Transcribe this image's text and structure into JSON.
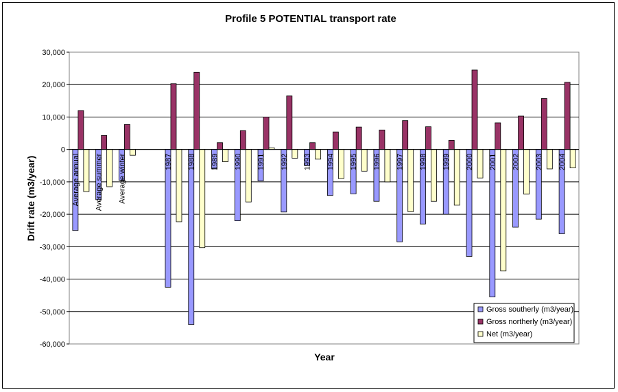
{
  "chart_data": {
    "type": "bar",
    "title": "Profile 5 POTENTIAL transport rate",
    "xlabel": "Year",
    "ylabel": "Drift rate (m3/year)",
    "ylim": [
      -60000,
      30000
    ],
    "yticks": [
      30000,
      20000,
      10000,
      0,
      -10000,
      -20000,
      -30000,
      -40000,
      -50000,
      -60000
    ],
    "ytick_labels": [
      "30,000",
      "20,000",
      "10,000",
      "0",
      "-10,000",
      "-20,000",
      "-30,000",
      "-40,000",
      "-50,000",
      "-60,000"
    ],
    "grid": true,
    "legend_position": "bottom-right",
    "categories": [
      "Average annual",
      "Average summer",
      "Average winter",
      "",
      "1987",
      "1988",
      "1989",
      "1990",
      "1991",
      "1992",
      "1993",
      "1994",
      "1995",
      "1996",
      "1997",
      "1998",
      "1999",
      "2000",
      "2001",
      "2002",
      "2003",
      "2004"
    ],
    "category_labels": [
      "Average annual",
      "Average summer",
      "Average winter",
      "",
      "1987",
      "1988",
      "1989",
      "1990",
      "1991",
      "1992",
      "1993",
      "1994",
      "1995",
      "1996",
      "1997",
      "1998",
      "1999",
      "2000",
      "2001",
      "2002",
      "2003",
      "2004"
    ],
    "series": [
      {
        "name": "Gross southerly (m3/year)",
        "color": "#9999ff",
        "values": [
          -25000,
          -15500,
          -9500,
          null,
          -42500,
          -54000,
          -6000,
          -22000,
          -9700,
          -19300,
          -5000,
          -14200,
          -13700,
          -16000,
          -28500,
          -23000,
          -20000,
          -33000,
          -45500,
          -24000,
          -21500,
          -26000
        ]
      },
      {
        "name": "Gross northerly (m3/year)",
        "color": "#993366",
        "values": [
          12000,
          4300,
          7700,
          null,
          20300,
          23800,
          2100,
          5800,
          10000,
          16500,
          2100,
          5400,
          6900,
          6000,
          8900,
          7000,
          2800,
          24500,
          8200,
          10300,
          15700,
          20700
        ]
      },
      {
        "name": "Net (m3/year)",
        "color": "#ffffcc",
        "values": [
          -13000,
          -11500,
          -1800,
          null,
          -22300,
          -30300,
          -3800,
          -16200,
          500,
          -2700,
          -3000,
          -9000,
          -6700,
          -10000,
          -19200,
          -16000,
          -17200,
          -8800,
          -37500,
          -13800,
          -6000,
          -5700
        ]
      }
    ]
  }
}
